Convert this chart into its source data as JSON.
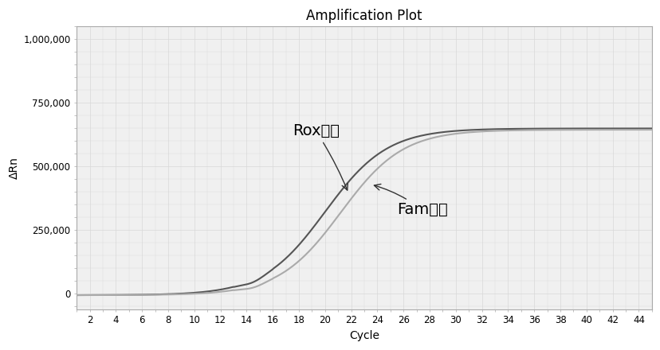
{
  "title": "Amplification Plot",
  "xlabel": "Cycle",
  "ylabel": "ΔRn",
  "xlim": [
    1,
    45
  ],
  "ylim": [
    -60000,
    1050000
  ],
  "xticks": [
    2,
    4,
    6,
    8,
    10,
    12,
    14,
    16,
    18,
    20,
    22,
    24,
    26,
    28,
    30,
    32,
    34,
    36,
    38,
    40,
    42,
    44
  ],
  "yticks": [
    0,
    250000,
    500000,
    750000,
    1000000
  ],
  "ytick_labels": [
    "0",
    "250,000",
    "500,000",
    "750,000",
    "1,000,000"
  ],
  "rox_color": "#555555",
  "fam_color": "#aaaaaa",
  "rox_label": "Rox通道",
  "fam_label": "Fam通道",
  "plot_bg_color": "#f0f0f0",
  "fig_bg_color": "#ffffff",
  "grid_color": "#d8d8d8",
  "rox_midpoint": 20.0,
  "rox_steepness": 0.42,
  "rox_max": 650000,
  "rox_baseline": -5000,
  "fam_midpoint": 21.2,
  "fam_steepness": 0.42,
  "fam_max": 645000,
  "fam_baseline": -5000,
  "title_fontsize": 12,
  "label_fontsize": 10,
  "tick_fontsize": 8.5,
  "annot_fontsize": 14
}
